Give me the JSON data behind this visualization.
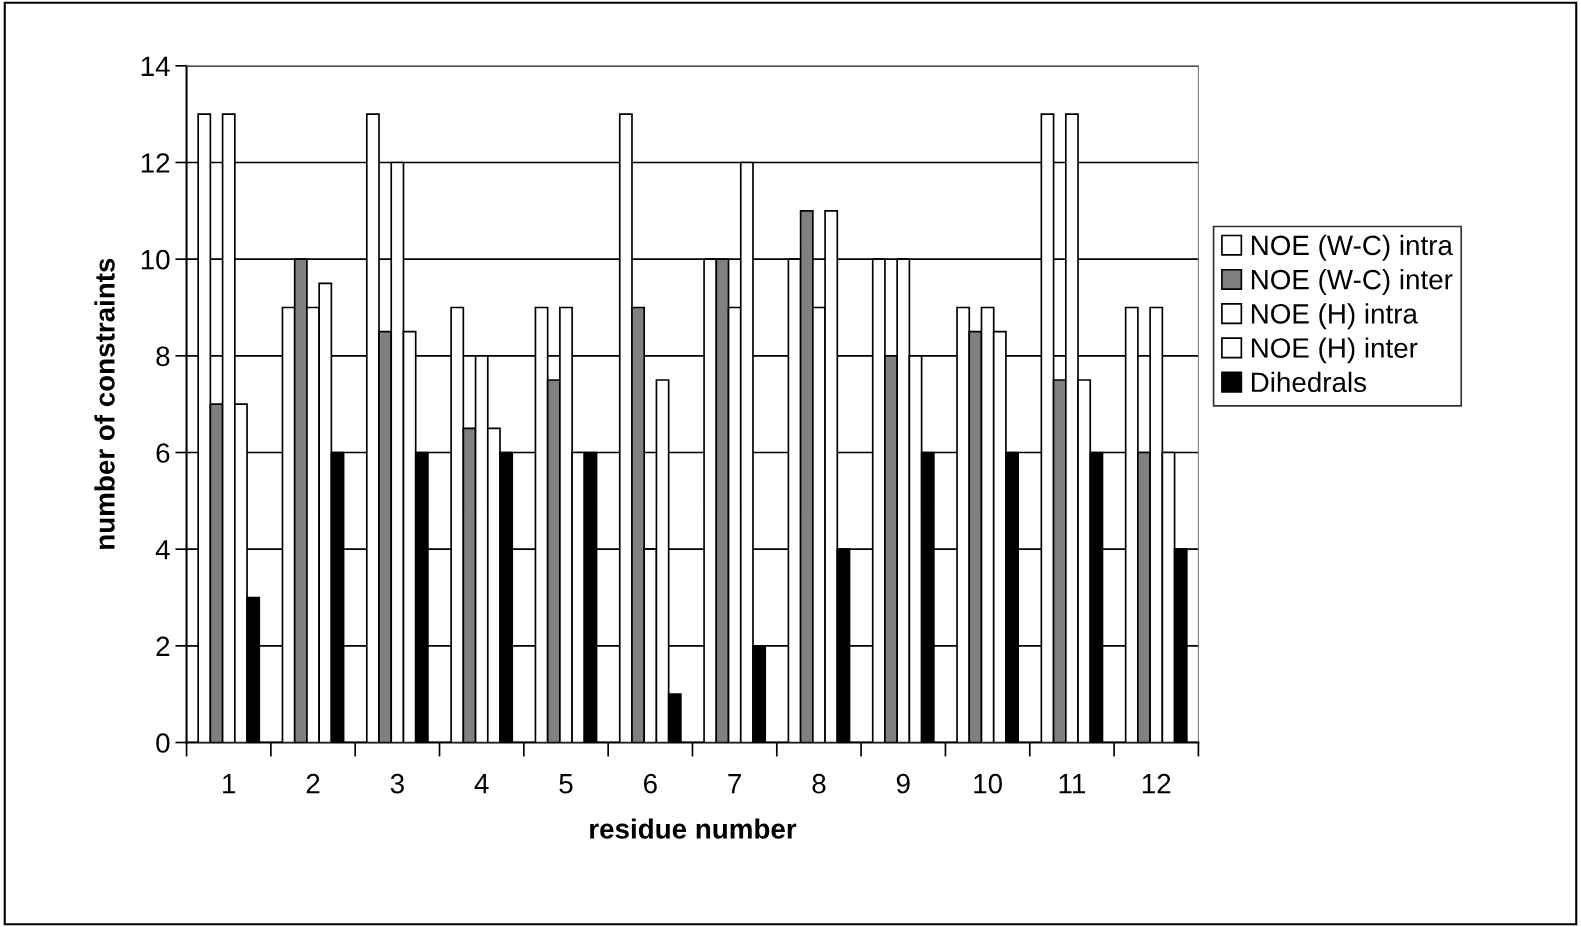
{
  "chart_data": {
    "type": "bar",
    "xlabel": "residue number",
    "ylabel": "number of constraints",
    "categories": [
      "1",
      "2",
      "3",
      "4",
      "5",
      "6",
      "7",
      "8",
      "9",
      "10",
      "11",
      "12"
    ],
    "series": [
      {
        "name": "NOE (W-C) intra",
        "color": "#ffffff",
        "values": [
          13,
          9,
          13,
          9,
          9,
          13,
          10,
          10,
          10,
          9,
          13,
          9
        ]
      },
      {
        "name": "NOE (W-C) inter",
        "color": "#808080",
        "values": [
          7,
          10,
          8.5,
          6.5,
          7.5,
          9,
          10,
          11,
          8,
          8.5,
          7.5,
          6
        ]
      },
      {
        "name": "NOE (H) intra",
        "color": "#ffffff",
        "values": [
          13,
          9,
          12,
          8,
          9,
          4,
          9,
          9,
          10,
          9,
          13,
          9
        ]
      },
      {
        "name": "NOE (H) inter",
        "color": "#ffffff",
        "values": [
          7,
          9.5,
          8.5,
          6.5,
          6,
          7.5,
          12,
          11,
          8,
          8.5,
          7.5,
          6
        ]
      },
      {
        "name": "Dihedrals",
        "color": "#000000",
        "values": [
          3,
          6,
          6,
          6,
          6,
          1,
          2,
          4,
          6,
          6,
          6,
          4
        ]
      }
    ],
    "ylim": [
      0,
      14
    ],
    "yticks": [
      0,
      2,
      4,
      6,
      8,
      10,
      12,
      14
    ],
    "grid": "y",
    "legend": "right"
  }
}
